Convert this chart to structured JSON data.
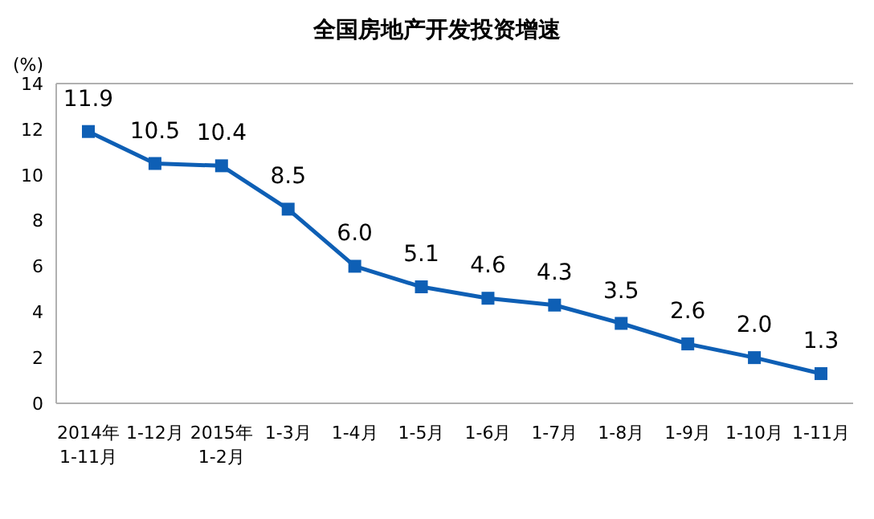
{
  "chart_data": {
    "type": "line",
    "title": "全国房地产开发投资增速",
    "ylabel": "(%)",
    "categories": [
      "2014年\n1-11月",
      "1-12月",
      "2015年\n1-2月",
      "1-3月",
      "1-4月",
      "1-5月",
      "1-6月",
      "1-7月",
      "1-8月",
      "1-9月",
      "1-10月",
      "1-11月"
    ],
    "series": [
      {
        "color": "#0e5fb5",
        "values": [
          11.9,
          10.5,
          10.4,
          8.5,
          6.0,
          5.1,
          4.6,
          4.3,
          3.5,
          2.6,
          2.0,
          1.3
        ],
        "value_labels": [
          "11.9",
          "10.5",
          "10.4",
          "8.5",
          "6.0",
          "5.1",
          "4.6",
          "4.3",
          "3.5",
          "2.6",
          "2.0",
          "1.3"
        ]
      }
    ],
    "ylim": [
      0,
      14
    ],
    "yticks": [
      0,
      2,
      4,
      6,
      8,
      10,
      12,
      14
    ],
    "marker": "square",
    "line_style": "solid"
  }
}
